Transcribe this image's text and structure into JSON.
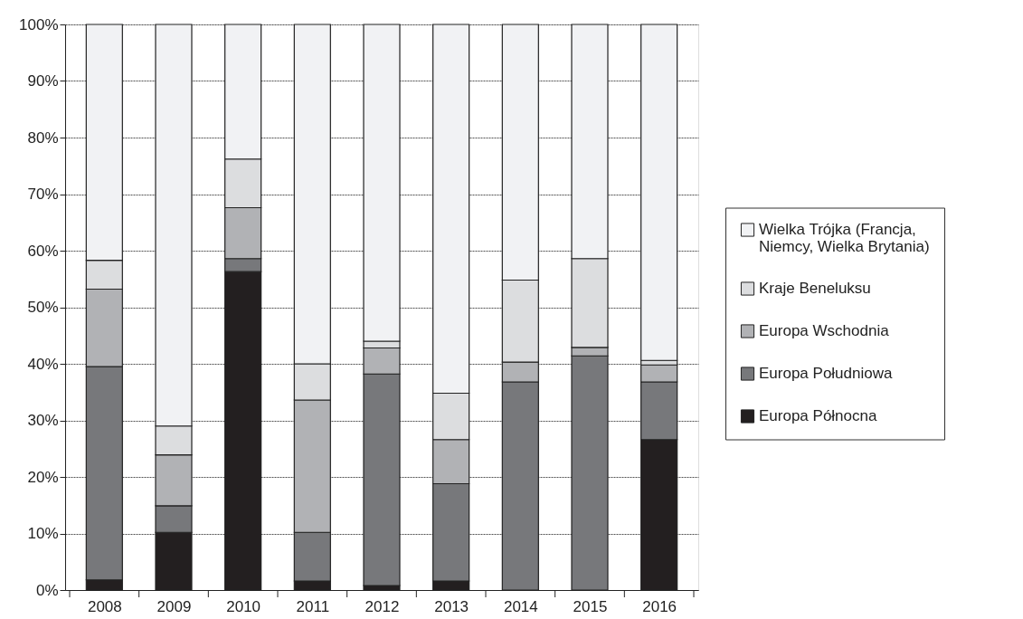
{
  "chart_data": {
    "type": "bar",
    "stacked": true,
    "categories": [
      "2008",
      "2009",
      "2010",
      "2011",
      "2012",
      "2013",
      "2014",
      "2015",
      "2016"
    ],
    "series": [
      {
        "name": "Europa Północna",
        "color": "#231f20",
        "values": [
          1.8,
          10.2,
          56.3,
          1.6,
          0.8,
          1.6,
          0,
          0,
          26.6
        ]
      },
      {
        "name": "Europa Południowa",
        "color": "#77787b",
        "values": [
          37.7,
          4.7,
          2.3,
          8.6,
          37.4,
          17.2,
          36.8,
          41.4,
          10.2
        ]
      },
      {
        "name": "Europa Wschodnia",
        "color": "#b1b2b5",
        "values": [
          13.7,
          9.0,
          9.0,
          23.4,
          4.6,
          7.8,
          3.5,
          1.5,
          3.0
        ]
      },
      {
        "name": "Kraje Beneluksu",
        "color": "#dcdddf",
        "values": [
          5.1,
          5.1,
          8.6,
          6.4,
          1.2,
          8.2,
          14.5,
          15.7,
          0.8
        ]
      },
      {
        "name": "Wielka Trójka (Francja, Niemcy, Wielka Brytania)",
        "color": "#f1f2f4",
        "values": [
          41.7,
          71.0,
          23.8,
          60.0,
          56.0,
          65.2,
          45.2,
          41.4,
          59.4
        ]
      }
    ],
    "ylim": [
      0,
      100
    ],
    "yticks": [
      {
        "value": 0,
        "label": "0%"
      },
      {
        "value": 10,
        "label": "10%"
      },
      {
        "value": 20,
        "label": "20%"
      },
      {
        "value": 30,
        "label": "30%"
      },
      {
        "value": 40,
        "label": "40%"
      },
      {
        "value": 50,
        "label": "50%"
      },
      {
        "value": 60,
        "label": "60%"
      },
      {
        "value": 70,
        "label": "70%"
      },
      {
        "value": 80,
        "label": "80%"
      },
      {
        "value": 90,
        "label": "90%"
      },
      {
        "value": 100,
        "label": "100%"
      }
    ],
    "grid": "y",
    "legend": "right"
  }
}
